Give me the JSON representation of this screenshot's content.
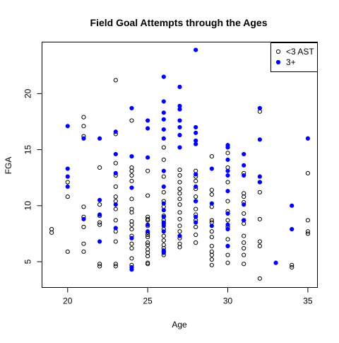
{
  "chart_data": {
    "type": "scatter",
    "title": "Field Goal Attempts through the Ages",
    "xlabel": "Age",
    "ylabel": "FGA",
    "xlim": [
      18.4,
      35.6
    ],
    "ylim": [
      2.7,
      24.6
    ],
    "x_ticks": [
      20,
      25,
      30,
      35
    ],
    "y_ticks": [
      5,
      10,
      15,
      20
    ],
    "grid": false,
    "legend_position": "top-right",
    "marker": "circle",
    "series": [
      {
        "name": "<3 AST",
        "fill": "none",
        "stroke": "#000000",
        "points": [
          [
            19,
            7.9
          ],
          [
            19,
            7.6
          ],
          [
            20,
            12.1
          ],
          [
            20,
            10.8
          ],
          [
            20,
            5.9
          ],
          [
            21,
            17.9
          ],
          [
            21,
            17.1
          ],
          [
            21,
            16.2
          ],
          [
            21,
            9.9
          ],
          [
            21,
            9.0
          ],
          [
            21,
            8.1
          ],
          [
            21,
            6.6
          ],
          [
            21,
            5.9
          ],
          [
            22,
            13.4
          ],
          [
            22,
            10.1
          ],
          [
            22,
            9.1
          ],
          [
            22,
            8.5
          ],
          [
            22,
            8.3
          ],
          [
            22,
            4.8
          ],
          [
            22,
            4.6
          ],
          [
            23,
            21.2
          ],
          [
            23,
            16.4
          ],
          [
            23,
            13.8
          ],
          [
            23,
            12.7
          ],
          [
            23,
            11.7
          ],
          [
            23,
            10.8
          ],
          [
            23,
            10.4
          ],
          [
            23,
            9.7
          ],
          [
            23,
            8.7
          ],
          [
            23,
            7.7
          ],
          [
            23,
            6.8
          ],
          [
            23,
            4.8
          ],
          [
            23,
            4.6
          ],
          [
            24,
            17.6
          ],
          [
            24,
            13.4
          ],
          [
            24,
            13.1
          ],
          [
            24,
            12.7
          ],
          [
            24,
            12.2
          ],
          [
            24,
            10.6
          ],
          [
            24,
            9.7
          ],
          [
            24,
            9.4
          ],
          [
            24,
            8.6
          ],
          [
            24,
            8.3
          ],
          [
            24,
            7.9
          ],
          [
            24,
            7.3
          ],
          [
            24,
            6.6
          ],
          [
            24,
            6.2
          ],
          [
            24,
            5.3
          ],
          [
            24,
            4.7
          ],
          [
            25,
            13.1
          ],
          [
            25,
            10.9
          ],
          [
            25,
            9.0
          ],
          [
            25,
            8.8
          ],
          [
            25,
            8.7
          ],
          [
            25,
            8.2
          ],
          [
            25,
            7.6
          ],
          [
            25,
            7.4
          ],
          [
            25,
            7.2
          ],
          [
            25,
            6.7
          ],
          [
            25,
            6.5
          ],
          [
            25,
            6.1
          ],
          [
            25,
            5.8
          ],
          [
            25,
            5.5
          ],
          [
            25,
            4.9
          ],
          [
            25,
            4.8
          ],
          [
            26,
            15.2
          ],
          [
            26,
            14.1
          ],
          [
            26,
            12.6
          ],
          [
            26,
            11.2
          ],
          [
            26,
            10.4
          ],
          [
            26,
            9.9
          ],
          [
            26,
            9.1
          ],
          [
            26,
            8.7
          ],
          [
            26,
            8.4
          ],
          [
            26,
            7.9
          ],
          [
            26,
            7.3
          ],
          [
            26,
            6.9
          ],
          [
            26,
            6.5
          ],
          [
            26,
            6.2
          ],
          [
            26,
            5.9
          ],
          [
            26,
            5.6
          ],
          [
            27,
            13.2
          ],
          [
            27,
            12.7
          ],
          [
            27,
            12.1
          ],
          [
            27,
            11.5
          ],
          [
            27,
            11.1
          ],
          [
            27,
            10.6
          ],
          [
            27,
            10.1
          ],
          [
            27,
            9.4
          ],
          [
            27,
            8.8
          ],
          [
            27,
            8.2
          ],
          [
            27,
            7.7
          ],
          [
            27,
            7.1
          ],
          [
            27,
            6.6
          ],
          [
            27,
            6.3
          ],
          [
            28,
            13.1
          ],
          [
            28,
            12.6
          ],
          [
            28,
            12.2
          ],
          [
            28,
            11.5
          ],
          [
            28,
            10.8
          ],
          [
            28,
            10.4
          ],
          [
            28,
            9.7
          ],
          [
            28,
            9.2
          ],
          [
            28,
            8.7
          ],
          [
            28,
            8.1
          ],
          [
            28,
            7.4
          ],
          [
            28,
            6.7
          ],
          [
            29,
            14.4
          ],
          [
            29,
            11.4
          ],
          [
            29,
            11.0
          ],
          [
            29,
            9.9
          ],
          [
            29,
            8.7
          ],
          [
            29,
            8.5
          ],
          [
            29,
            7.7
          ],
          [
            29,
            7.2
          ],
          [
            29,
            6.4
          ],
          [
            29,
            5.9
          ],
          [
            29,
            5.6
          ],
          [
            29,
            5.2
          ],
          [
            29,
            4.7
          ],
          [
            30,
            14.7
          ],
          [
            30,
            13.4
          ],
          [
            30,
            12.1
          ],
          [
            30,
            10.4
          ],
          [
            30,
            9.5
          ],
          [
            30,
            8.7
          ],
          [
            30,
            8.1
          ],
          [
            30,
            7.0
          ],
          [
            30,
            6.4
          ],
          [
            30,
            5.6
          ],
          [
            30,
            4.9
          ],
          [
            31,
            12.9
          ],
          [
            31,
            11.1
          ],
          [
            31,
            10.8
          ],
          [
            31,
            10.3
          ],
          [
            31,
            9.3
          ],
          [
            31,
            8.7
          ],
          [
            31,
            8.4
          ],
          [
            31,
            7.3
          ],
          [
            31,
            6.7
          ],
          [
            31,
            6.2
          ],
          [
            31,
            5.6
          ],
          [
            31,
            4.8
          ],
          [
            32,
            18.4
          ],
          [
            32,
            12.1
          ],
          [
            32,
            11.2
          ],
          [
            32,
            8.8
          ],
          [
            32,
            6.8
          ],
          [
            32,
            6.4
          ],
          [
            32,
            3.5
          ],
          [
            34,
            4.7
          ],
          [
            34,
            4.5
          ],
          [
            35,
            12.9
          ],
          [
            35,
            8.7
          ],
          [
            35,
            7.7
          ],
          [
            35,
            7.5
          ]
        ]
      },
      {
        "name": "3+",
        "fill": "#0000ff",
        "stroke": "#0000ff",
        "points": [
          [
            20,
            17.1
          ],
          [
            20,
            13.3
          ],
          [
            20,
            12.6
          ],
          [
            20,
            11.7
          ],
          [
            21,
            16.0
          ],
          [
            21,
            8.8
          ],
          [
            22,
            16.0
          ],
          [
            22,
            10.5
          ],
          [
            22,
            9.2
          ],
          [
            22,
            6.8
          ],
          [
            23,
            16.6
          ],
          [
            23,
            14.6
          ],
          [
            23,
            12.9
          ],
          [
            23,
            10.1
          ],
          [
            23,
            8.0
          ],
          [
            24,
            18.7
          ],
          [
            24,
            14.4
          ],
          [
            24,
            11.6
          ],
          [
            24,
            7.1
          ],
          [
            24,
            4.5
          ],
          [
            24,
            4.3
          ],
          [
            25,
            17.6
          ],
          [
            25,
            16.9
          ],
          [
            25,
            14.3
          ],
          [
            25,
            8.3
          ],
          [
            25,
            7.7
          ],
          [
            26,
            21.5
          ],
          [
            26,
            19.3
          ],
          [
            26,
            18.3
          ],
          [
            26,
            17.7
          ],
          [
            26,
            16.8
          ],
          [
            26,
            16.0
          ],
          [
            26,
            13.1
          ],
          [
            26,
            11.7
          ],
          [
            26,
            10.2
          ],
          [
            26,
            9.6
          ],
          [
            26,
            9.0
          ],
          [
            26,
            8.5
          ],
          [
            26,
            8.2
          ],
          [
            26,
            7.7
          ],
          [
            26,
            6.0
          ],
          [
            26,
            5.8
          ],
          [
            27,
            20.6
          ],
          [
            27,
            18.9
          ],
          [
            27,
            18.6
          ],
          [
            27,
            17.6
          ],
          [
            27,
            17.0
          ],
          [
            27,
            16.3
          ],
          [
            27,
            15.2
          ],
          [
            27,
            7.3
          ],
          [
            28,
            23.9
          ],
          [
            28,
            17.0
          ],
          [
            28,
            16.5
          ],
          [
            28,
            15.8
          ],
          [
            28,
            15.5
          ],
          [
            28,
            12.8
          ],
          [
            28,
            11.7
          ],
          [
            28,
            10.4
          ],
          [
            28,
            9.0
          ],
          [
            28,
            8.5
          ],
          [
            29,
            13.3
          ],
          [
            29,
            10.2
          ],
          [
            29,
            8.2
          ],
          [
            30,
            15.4
          ],
          [
            30,
            15.2
          ],
          [
            30,
            14.1
          ],
          [
            30,
            13.1
          ],
          [
            30,
            12.7
          ],
          [
            30,
            11.3
          ],
          [
            30,
            9.3
          ],
          [
            30,
            8.3
          ],
          [
            30,
            7.9
          ],
          [
            30,
            6.4
          ],
          [
            31,
            14.6
          ],
          [
            31,
            13.6
          ],
          [
            31,
            12.7
          ],
          [
            31,
            10.1
          ],
          [
            31,
            8.7
          ],
          [
            32,
            18.7
          ],
          [
            32,
            15.9
          ],
          [
            32,
            12.6
          ],
          [
            32,
            12.1
          ],
          [
            33,
            4.9
          ],
          [
            34,
            10.0
          ],
          [
            34,
            7.9
          ],
          [
            35,
            16.0
          ]
        ]
      }
    ]
  }
}
